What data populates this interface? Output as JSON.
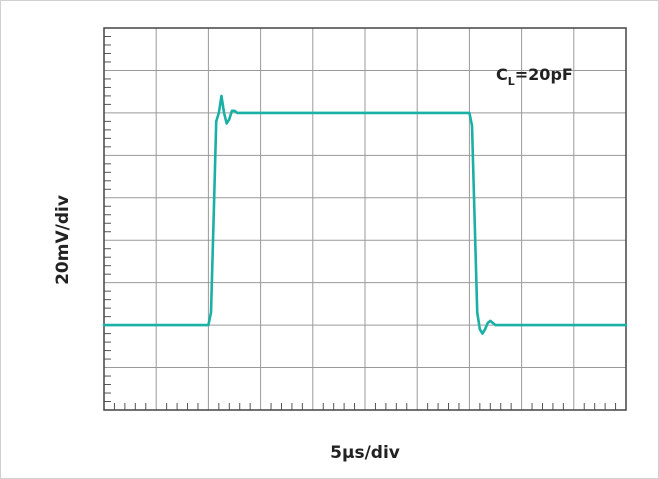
{
  "chart_data": {
    "type": "line",
    "title": "",
    "xlabel": "5µs/div",
    "ylabel": "20mV/div",
    "annotation": {
      "main": "C",
      "subscript": "L",
      "rest": "=20pF"
    },
    "grid": true,
    "x_divisions": 10,
    "y_divisions": 9,
    "xlim": [
      0,
      10
    ],
    "ylim": [
      0,
      9
    ],
    "trace_color": "#1ab0a6",
    "series": [
      {
        "x": [
          0,
          2.0,
          2.05,
          2.1,
          2.15,
          2.2,
          2.25,
          2.3,
          2.35,
          2.4,
          2.45,
          2.5,
          2.55,
          2.6,
          2.65,
          2.8,
          7.0,
          7.05,
          7.1,
          7.15,
          7.2,
          7.25,
          7.3,
          7.35,
          7.4,
          7.45,
          7.5,
          7.55,
          7.6,
          7.7,
          10
        ],
        "y": [
          2.0,
          2.0,
          2.3,
          4.5,
          6.8,
          7.0,
          7.4,
          7.0,
          6.75,
          6.85,
          7.05,
          7.05,
          7.0,
          7.0,
          7.0,
          7.0,
          7.0,
          6.7,
          4.5,
          2.3,
          1.9,
          1.8,
          1.9,
          2.05,
          2.1,
          2.05,
          2.0,
          2.0,
          2.0,
          2.0,
          2.0
        ]
      }
    ]
  }
}
